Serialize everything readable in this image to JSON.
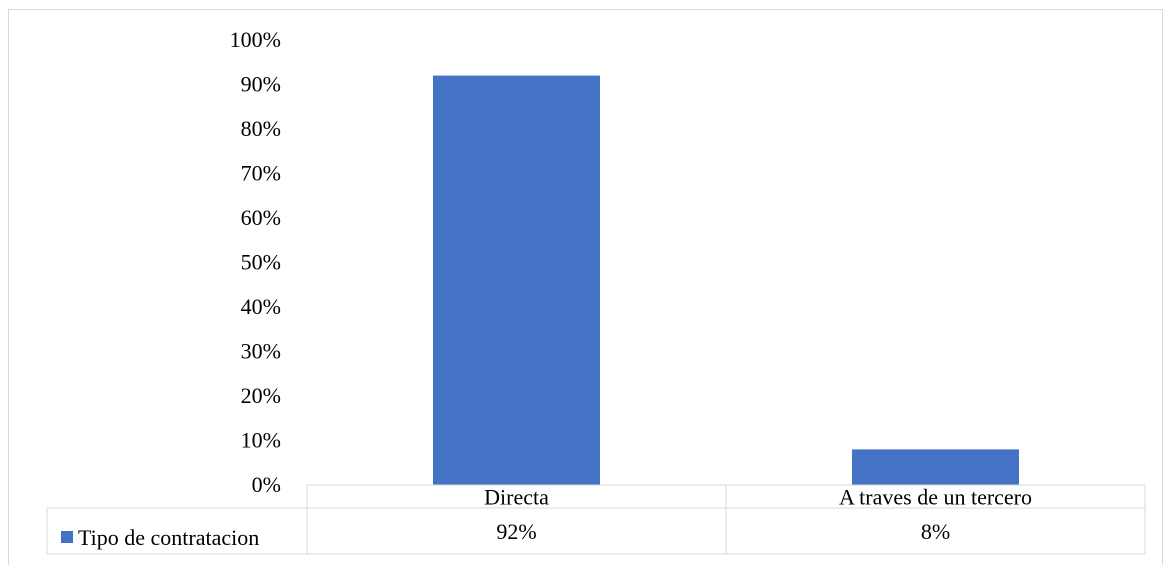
{
  "chart_data": {
    "type": "bar",
    "categories": [
      "Directa",
      "A traves de un tercero"
    ],
    "series": [
      {
        "name": "Tipo de contratacion",
        "values": [
          92,
          8
        ],
        "color": "#4472c4"
      }
    ],
    "data_table": {
      "series_label": "Tipo de contratacion",
      "value_labels": [
        "92%",
        "8%"
      ]
    },
    "y_ticks": [
      "0%",
      "10%",
      "20%",
      "30%",
      "40%",
      "50%",
      "60%",
      "70%",
      "80%",
      "90%",
      "100%"
    ],
    "ylim": [
      0,
      100
    ],
    "grid": false,
    "legend": "data-table",
    "title": "",
    "xlabel": "",
    "ylabel": "",
    "colors": {
      "bar": "#4472c4",
      "border": "#d9d9d9",
      "text": "#000000"
    }
  }
}
